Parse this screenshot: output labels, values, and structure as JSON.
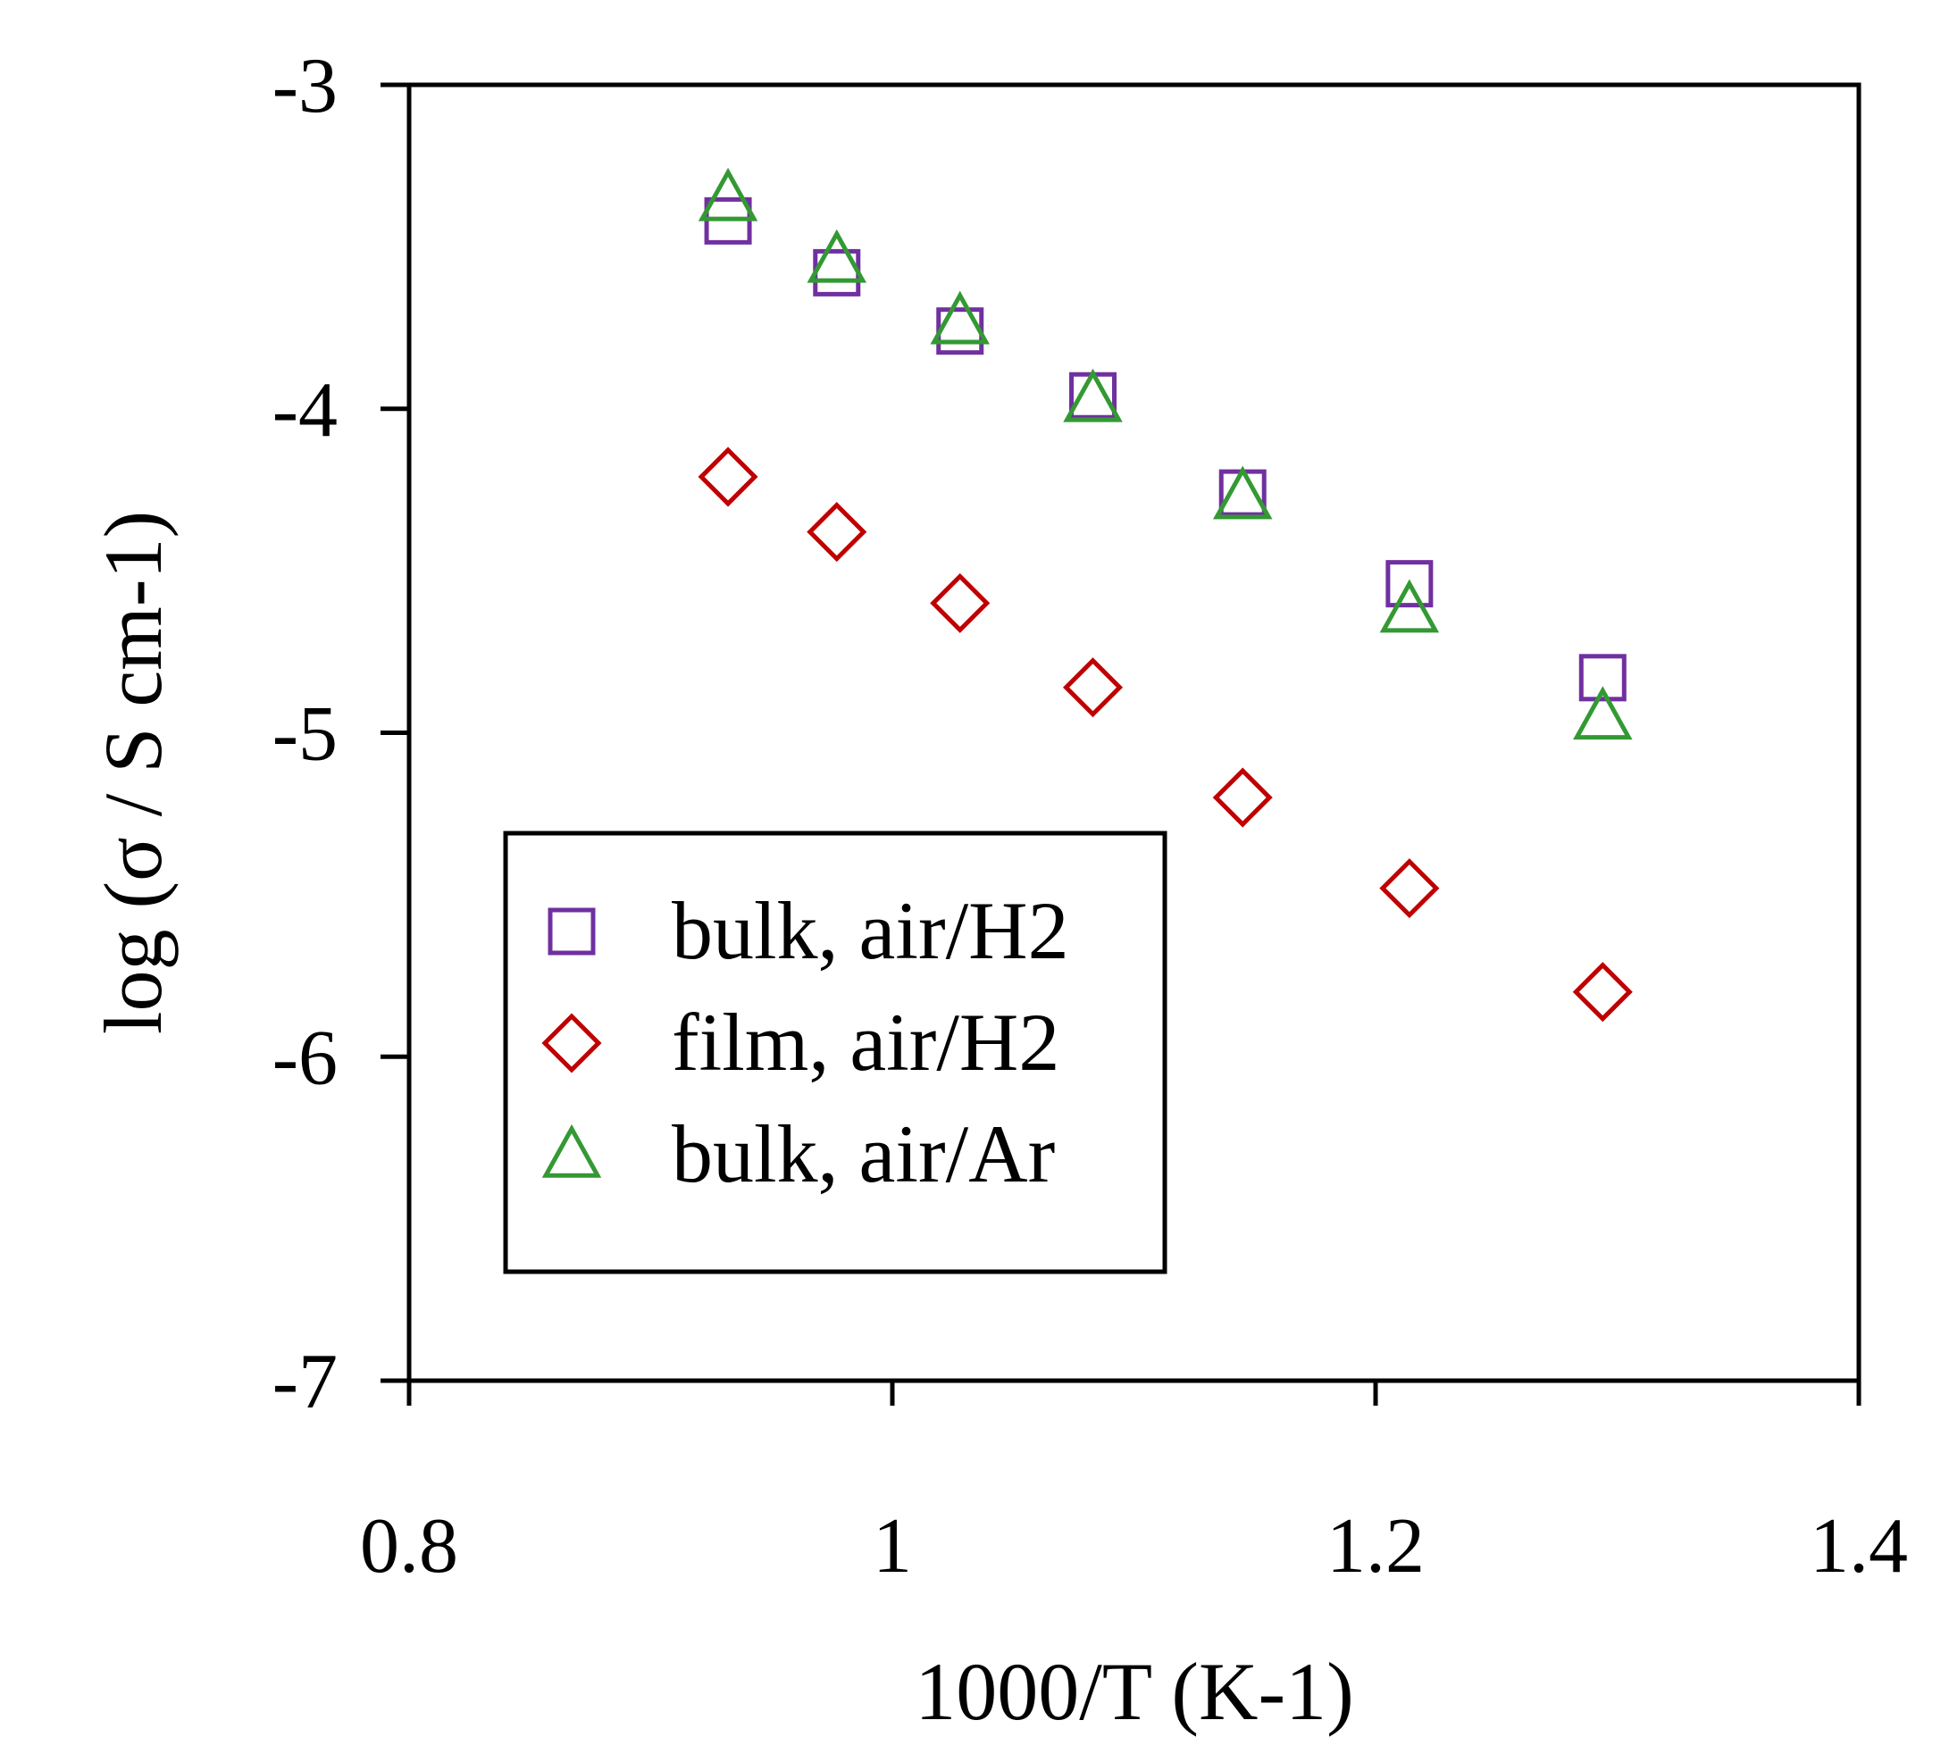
{
  "chart_data": {
    "type": "scatter",
    "xlabel": "1000/T (K-1)",
    "ylabel": "log (σ / S cm-1)",
    "xlim": [
      0.8,
      1.4
    ],
    "ylim": [
      -7,
      -3
    ],
    "xticks": [
      0.8,
      1,
      1.2,
      1.4
    ],
    "xtick_labels": [
      "0.8",
      "1",
      "1.2",
      "1.4"
    ],
    "yticks": [
      -7,
      -6,
      -5,
      -4,
      -3
    ],
    "ytick_labels": [
      "-7",
      "-6",
      "-5",
      "-4",
      "-3"
    ],
    "grid": false,
    "legend_position": "bottom-left",
    "series": [
      {
        "name": "bulk, air/H2",
        "marker": "square",
        "color": "#7030a0",
        "x": [
          0.932,
          0.977,
          1.028,
          1.083,
          1.145,
          1.214,
          1.294
        ],
        "y": [
          -3.42,
          -3.58,
          -3.76,
          -3.96,
          -4.26,
          -4.54,
          -4.83
        ]
      },
      {
        "name": "film, air/H2",
        "marker": "diamond",
        "color": "#c00000",
        "x": [
          0.932,
          0.977,
          1.028,
          1.083,
          1.145,
          1.214,
          1.294
        ],
        "y": [
          -4.21,
          -4.38,
          -4.6,
          -4.86,
          -5.2,
          -5.48,
          -5.8
        ]
      },
      {
        "name": "bulk, air/Ar",
        "marker": "triangle",
        "color": "#339933",
        "x": [
          0.932,
          0.977,
          1.028,
          1.083,
          1.145,
          1.214,
          1.294
        ],
        "y": [
          -3.35,
          -3.54,
          -3.73,
          -3.97,
          -4.27,
          -4.62,
          -4.95
        ]
      }
    ]
  }
}
